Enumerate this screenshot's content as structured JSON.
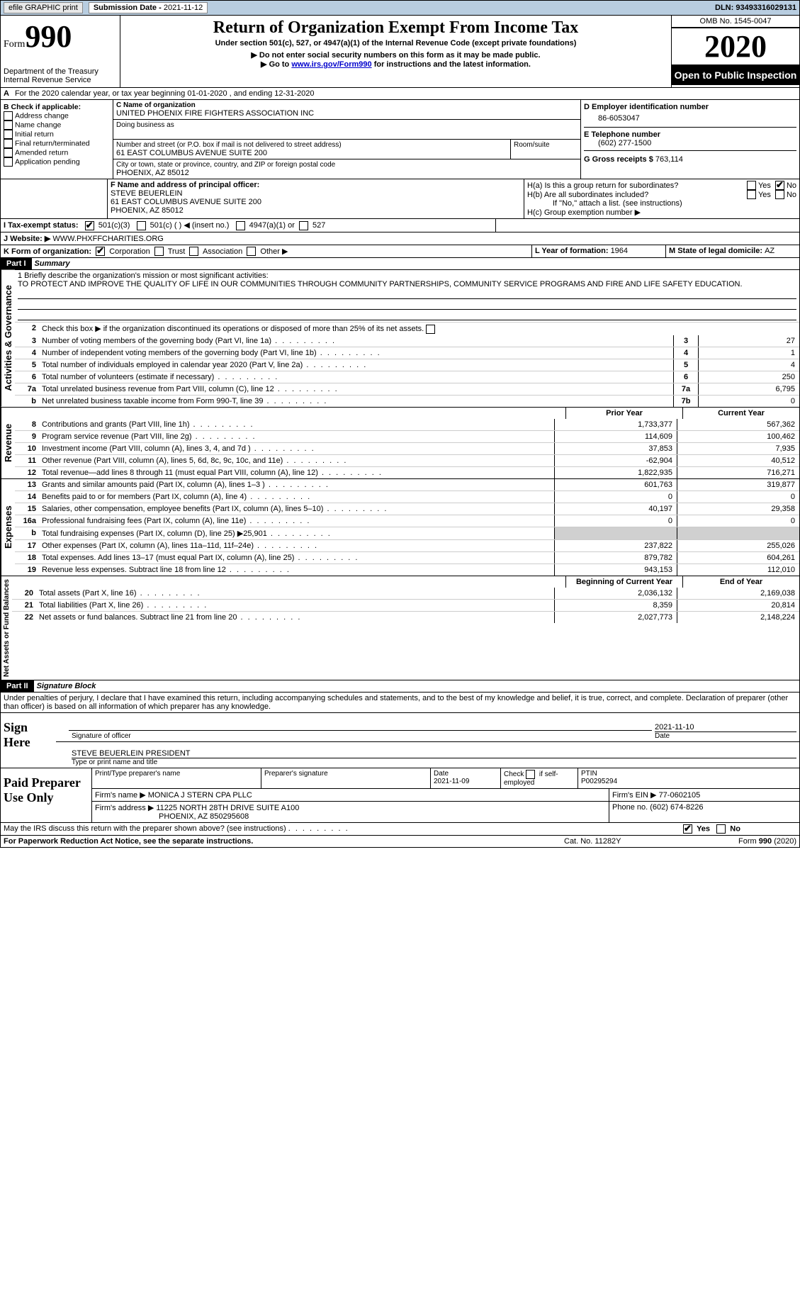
{
  "top": {
    "efile": "efile GRAPHIC print",
    "sub_label": "Submission Date - ",
    "sub_date": "2021-11-12",
    "dln_label": "DLN: ",
    "dln": "93493316029131"
  },
  "header": {
    "form_word": "Form",
    "form_num": "990",
    "dept": "Department of the Treasury",
    "irs": "Internal Revenue Service",
    "title": "Return of Organization Exempt From Income Tax",
    "subtitle": "Under section 501(c), 527, or 4947(a)(1) of the Internal Revenue Code (except private foundations)",
    "note1": "▶ Do not enter social security numbers on this form as it may be made public.",
    "note2a": "▶ Go to ",
    "note2_link": "www.irs.gov/Form990",
    "note2b": " for instructions and the latest information.",
    "omb": "OMB No. 1545-0047",
    "year": "2020",
    "open": "Open to Public Inspection"
  },
  "a_line": "For the 2020 calendar year, or tax year beginning 01-01-2020    , and ending 12-31-2020",
  "b": {
    "title": "B Check if applicable:",
    "items": [
      "Address change",
      "Name change",
      "Initial return",
      "Final return/terminated",
      "Amended return",
      "Application pending"
    ]
  },
  "c": {
    "label": "C Name of organization",
    "name": "UNITED PHOENIX FIRE FIGHTERS ASSOCIATION INC",
    "dba_label": "Doing business as",
    "street_label": "Number and street (or P.O. box if mail is not delivered to street address)",
    "room_label": "Room/suite",
    "street": "61 EAST COLUMBUS AVENUE SUITE 200",
    "city_label": "City or town, state or province, country, and ZIP or foreign postal code",
    "city": "PHOENIX, AZ   85012"
  },
  "d": {
    "label": "D Employer identification number",
    "val": "86-6053047"
  },
  "e": {
    "label": "E Telephone number",
    "val": "(602) 277-1500"
  },
  "f": {
    "label": "F   Name and address of principal officer:",
    "name": "STEVE BEUERLEIN",
    "addr1": "61 EAST COLUMBUS AVENUE SUITE 200",
    "addr2": "PHOENIX, AZ   85012"
  },
  "g": {
    "label": "G Gross receipts $ ",
    "val": "763,114"
  },
  "h": {
    "ha": "H(a)  Is this a group return for subordinates?",
    "hb": "H(b)  Are all subordinates included?",
    "hb_note": "If \"No,\" attach a list. (see instructions)",
    "hc": "H(c)  Group exemption number ▶",
    "yes": "Yes",
    "no": "No"
  },
  "i": {
    "label": "I    Tax-exempt status:",
    "o1": "501(c)(3)",
    "o2": "501(c) (    ) ◀ (insert no.)",
    "o3": "4947(a)(1) or",
    "o4": "527"
  },
  "j": {
    "label": "J    Website: ▶ ",
    "val": "WWW.PHXFFCHARITIES.ORG"
  },
  "k": {
    "label": "K Form of organization:",
    "o1": "Corporation",
    "o2": "Trust",
    "o3": "Association",
    "o4": "Other ▶"
  },
  "l": {
    "label": "L Year of formation: ",
    "val": "1964"
  },
  "m": {
    "label": "M State of legal domicile: ",
    "val": "AZ"
  },
  "part1": {
    "header": "Part I",
    "title": "Summary",
    "q1_label": "1  Briefly describe the organization's mission or most significant activities:",
    "q1_text": "TO PROTECT AND IMPROVE THE QUALITY OF LIFE IN OUR COMMUNITIES THROUGH COMMUNITY PARTNERSHIPS, COMMUNITY SERVICE PROGRAMS AND FIRE AND LIFE SAFETY EDUCATION.",
    "q2": "Check this box ▶        if the organization discontinued its operations or disposed of more than 25% of its net assets.",
    "sideA": "Activities & Governance",
    "sideR": "Revenue",
    "sideE": "Expenses",
    "sideN": "Net Assets or Fund Balances",
    "lines_gov": [
      {
        "n": "3",
        "t": "Number of voting members of the governing body (Part VI, line 1a)",
        "b": "3",
        "v": "27"
      },
      {
        "n": "4",
        "t": "Number of independent voting members of the governing body (Part VI, line 1b)",
        "b": "4",
        "v": "1"
      },
      {
        "n": "5",
        "t": "Total number of individuals employed in calendar year 2020 (Part V, line 2a)",
        "b": "5",
        "v": "4"
      },
      {
        "n": "6",
        "t": "Total number of volunteers (estimate if necessary)",
        "b": "6",
        "v": "250"
      },
      {
        "n": "7a",
        "t": "Total unrelated business revenue from Part VIII, column (C), line 12",
        "b": "7a",
        "v": "6,795"
      },
      {
        "n": "b",
        "t": "Net unrelated business taxable income from Form 990-T, line 39",
        "b": "7b",
        "v": "0"
      }
    ],
    "col_prior": "Prior Year",
    "col_curr": "Current Year",
    "lines_rev": [
      {
        "n": "8",
        "t": "Contributions and grants (Part VIII, line 1h)",
        "p": "1,733,377",
        "c": "567,362"
      },
      {
        "n": "9",
        "t": "Program service revenue (Part VIII, line 2g)",
        "p": "114,609",
        "c": "100,462"
      },
      {
        "n": "10",
        "t": "Investment income (Part VIII, column (A), lines 3, 4, and 7d )",
        "p": "37,853",
        "c": "7,935"
      },
      {
        "n": "11",
        "t": "Other revenue (Part VIII, column (A), lines 5, 6d, 8c, 9c, 10c, and 11e)",
        "p": "-62,904",
        "c": "40,512"
      },
      {
        "n": "12",
        "t": "Total revenue—add lines 8 through 11 (must equal Part VIII, column (A), line 12)",
        "p": "1,822,935",
        "c": "716,271"
      }
    ],
    "lines_exp": [
      {
        "n": "13",
        "t": "Grants and similar amounts paid (Part IX, column (A), lines 1–3 )",
        "p": "601,763",
        "c": "319,877"
      },
      {
        "n": "14",
        "t": "Benefits paid to or for members (Part IX, column (A), line 4)",
        "p": "0",
        "c": "0"
      },
      {
        "n": "15",
        "t": "Salaries, other compensation, employee benefits (Part IX, column (A), lines 5–10)",
        "p": "40,197",
        "c": "29,358"
      },
      {
        "n": "16a",
        "t": "Professional fundraising fees (Part IX, column (A), line 11e)",
        "p": "0",
        "c": "0"
      },
      {
        "n": "b",
        "t": "Total fundraising expenses (Part IX, column (D), line 25) ▶25,901",
        "p": "",
        "c": "",
        "grey": true
      },
      {
        "n": "17",
        "t": "Other expenses (Part IX, column (A), lines 11a–11d, 11f–24e)",
        "p": "237,822",
        "c": "255,026"
      },
      {
        "n": "18",
        "t": "Total expenses. Add lines 13–17 (must equal Part IX, column (A), line 25)",
        "p": "879,782",
        "c": "604,261"
      },
      {
        "n": "19",
        "t": "Revenue less expenses. Subtract line 18 from line 12",
        "p": "943,153",
        "c": "112,010"
      }
    ],
    "col_begin": "Beginning of Current Year",
    "col_end": "End of Year",
    "lines_net": [
      {
        "n": "20",
        "t": "Total assets (Part X, line 16)",
        "p": "2,036,132",
        "c": "2,169,038"
      },
      {
        "n": "21",
        "t": "Total liabilities (Part X, line 26)",
        "p": "8,359",
        "c": "20,814"
      },
      {
        "n": "22",
        "t": "Net assets or fund balances. Subtract line 21 from line 20",
        "p": "2,027,773",
        "c": "2,148,224"
      }
    ]
  },
  "part2": {
    "header": "Part II",
    "title": "Signature Block",
    "decl": "Under penalties of perjury, I declare that I have examined this return, including accompanying schedules and statements, and to the best of my knowledge and belief, it is true, correct, and complete. Declaration of preparer (other than officer) is based on all information of which preparer has any knowledge."
  },
  "sign": {
    "here": "Sign Here",
    "sig_officer": "Signature of officer",
    "date_label": "Date",
    "date": "2021-11-10",
    "name": "STEVE BEUERLEIN PRESIDENT",
    "type_label": "Type or print name and title"
  },
  "paid": {
    "title": "Paid Preparer Use Only",
    "c1": "Print/Type preparer's name",
    "c2": "Preparer's signature",
    "c3": "Date",
    "c3v": "2021-11-09",
    "c4a": "Check",
    "c4b": "if self-employed",
    "c5": "PTIN",
    "c5v": "P00295294",
    "firm_name_l": "Firm's name    ▶ ",
    "firm_name": "MONICA J STERN CPA PLLC",
    "firm_ein_l": "Firm's EIN ▶ ",
    "firm_ein": "77-0602105",
    "firm_addr_l": "Firm's address ▶ ",
    "firm_addr1": "11225 NORTH 28TH DRIVE SUITE A100",
    "firm_addr2": "PHOENIX, AZ   850295608",
    "phone_l": "Phone no. ",
    "phone": "(602) 674-8226"
  },
  "footer": {
    "discuss": "May the IRS discuss this return with the preparer shown above? (see instructions)",
    "yes": "Yes",
    "no": "No",
    "pra": "For Paperwork Reduction Act Notice, see the separate instructions.",
    "cat": "Cat. No. 11282Y",
    "form": "Form 990 (2020)"
  }
}
